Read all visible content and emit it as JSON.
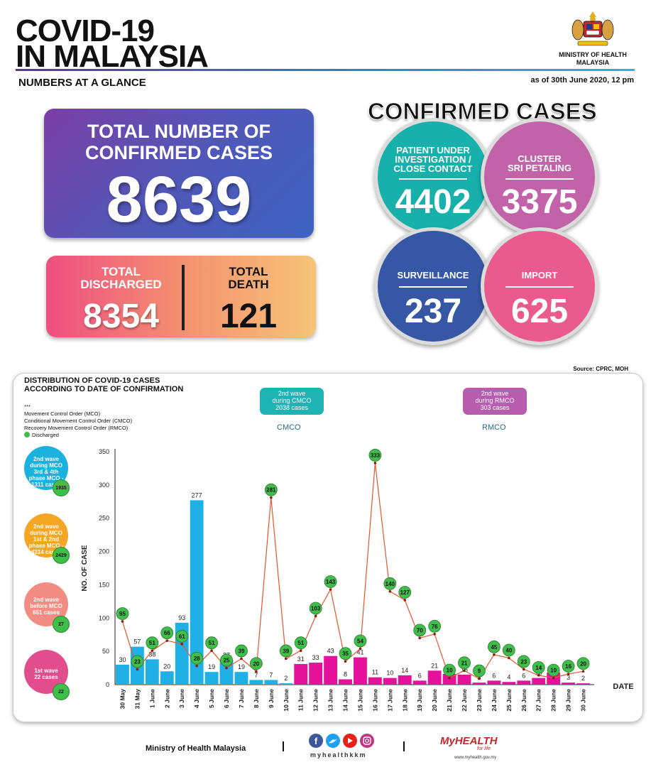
{
  "header": {
    "title_line1": "COVID-19",
    "title_line2": "IN MALAYSIA",
    "ministry_line1": "MINISTRY OF HEALTH",
    "ministry_line2": "MALAYSIA",
    "subtitle": "NUMBERS AT A GLANCE",
    "as_of": "as of 30th June 2020, 12 pm"
  },
  "total": {
    "label_line1": "TOTAL NUMBER OF",
    "label_line2": "CONFIRMED CASES",
    "value": "8639"
  },
  "discharged": {
    "label_line1": "TOTAL",
    "label_line2": "DISCHARGED",
    "value": "8354"
  },
  "death": {
    "label_line1": "TOTAL",
    "label_line2": "DEATH",
    "value": "121"
  },
  "confirmed": {
    "heading": "CONFIRMED CASES",
    "pui": {
      "line1": "PATIENT UNDER",
      "line2": "INVESTIGATION /",
      "line3": "CLOSE CONTACT",
      "value": "4402"
    },
    "cluster": {
      "line1": "CLUSTER",
      "line2": "SRI PETALING",
      "value": "3375"
    },
    "surveillance": {
      "line1": "SURVEILLANCE",
      "value": "237"
    },
    "import": {
      "line1": "IMPORT",
      "value": "625"
    }
  },
  "source": "Source: CPRC, MOH",
  "distribution": {
    "title_line1": "DISTRIBUTION OF COVID-19 CASES",
    "title_line2": "ACCORDING TO DATE OF CONFIRMATION",
    "stars": "***",
    "legend_mco": "Movement Control Order (MCO)",
    "legend_cmco": "Conditional Movement Control Order (CMCO)",
    "legend_rmco": "Recovery Movement Control Order (RMCO)",
    "legend_discharged": "Discharged"
  },
  "waves": {
    "cmco": {
      "line1": "2nd wave",
      "line2": "during CMCO",
      "line3": "2038 cases"
    },
    "rmco": {
      "line1": "2nd wave",
      "line2": "during RMCO",
      "line3": "303 cases"
    },
    "cmco_label": "CMCO",
    "rmco_label": "RMCO"
  },
  "side": [
    {
      "line1": "2nd wave",
      "line2": "during MCO",
      "line3": "3rd & 4th",
      "line4": "phase MCO -",
      "line5": "1311 cases",
      "discharged": "1935"
    },
    {
      "line1": "2nd wave",
      "line2": "during MCO",
      "line3": "1st & 2nd",
      "line4": "phase MCO -",
      "line5": "4314 cases",
      "discharged": "2429"
    },
    {
      "line1": "2nd wave",
      "line2": "before MCO",
      "line3": "651 cases",
      "discharged": "27"
    },
    {
      "line1": "1st wave",
      "line2": "22 cases",
      "discharged": "22"
    }
  ],
  "chart_data": {
    "type": "bar",
    "title": "DISTRIBUTION OF COVID-19 CASES ACCORDING TO DATE OF CONFIRMATION",
    "xlabel": "DATE",
    "ylabel": "NO. OF CASE",
    "ylim": [
      0,
      350
    ],
    "yticks": [
      0,
      50,
      100,
      150,
      200,
      250,
      300,
      350
    ],
    "categories": [
      "30 May",
      "31 May",
      "1 June",
      "2 June",
      "3 June",
      "4 June",
      "5 June",
      "6 June",
      "7 June",
      "8 June",
      "9 June",
      "10 June",
      "11 June",
      "12 June",
      "13 June",
      "14 June",
      "15 June",
      "16 June",
      "17 June",
      "18 June",
      "19 June",
      "20 June",
      "21 June",
      "22 June",
      "23 June",
      "24 June",
      "25 June",
      "26 June",
      "27 June",
      "28 June",
      "29 June",
      "30 June"
    ],
    "series": [
      {
        "name": "Confirmed cases",
        "values": [
          30,
          57,
          38,
          20,
          93,
          277,
          19,
          37,
          19,
          7,
          7,
          2,
          31,
          33,
          43,
          8,
          41,
          11,
          10,
          14,
          6,
          21,
          16,
          15,
          3,
          6,
          4,
          6,
          10,
          18,
          3,
          2
        ]
      },
      {
        "name": "Discharged",
        "values": [
          95,
          23,
          51,
          66,
          61,
          28,
          51,
          25,
          39,
          20,
          281,
          39,
          51,
          103,
          143,
          35,
          54,
          333,
          140,
          127,
          70,
          76,
          10,
          21,
          9,
          45,
          40,
          23,
          14,
          10,
          16,
          20
        ]
      }
    ],
    "bar_colors": [
      "#1fb0e6",
      "#1fb0e6",
      "#1fb0e6",
      "#1fb0e6",
      "#1fb0e6",
      "#1fb0e6",
      "#1fb0e6",
      "#1fb0e6",
      "#1fb0e6",
      "#1fb0e6",
      "#1fb0e6",
      "#1fb0e6",
      "#e6119a",
      "#e6119a",
      "#e6119a",
      "#e6119a",
      "#e6119a",
      "#e6119a",
      "#e6119a",
      "#e6119a",
      "#e6119a",
      "#e6119a",
      "#e6119a",
      "#e6119a",
      "#e6119a",
      "#e6119a",
      "#e6119a",
      "#e6119a",
      "#e6119a",
      "#e6119a",
      "#e6119a",
      "#e6119a"
    ],
    "line_color": "#e8552b",
    "marker_color": "#3fbf4a"
  },
  "footer": {
    "ministry": "Ministry of Health Malaysia",
    "handle": "myhealthkkm",
    "brand": "MyHEALTH",
    "brand_sub": "for life",
    "url": "www.myhealth.gov.my"
  }
}
